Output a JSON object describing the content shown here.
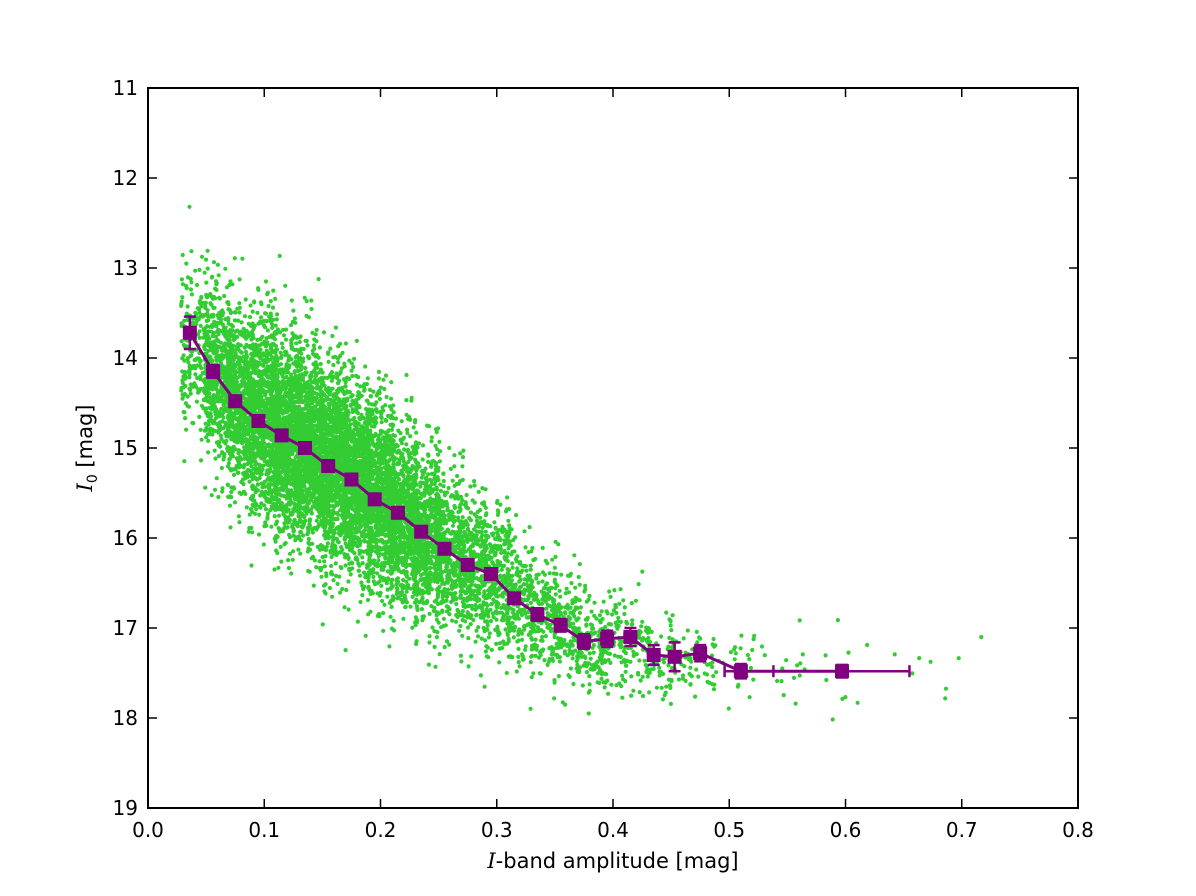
{
  "chart_data": {
    "type": "scatter",
    "title": "",
    "xlabel": {
      "italic": "I",
      "text": "-band amplitude [mag]"
    },
    "ylabel": {
      "italic": "I",
      "subscript": "0",
      "text": " [mag]"
    },
    "xlim": [
      0.0,
      0.8
    ],
    "ylim": [
      19,
      11
    ],
    "y_inverted": true,
    "grid": false,
    "legend": "none",
    "xticks": [
      "0.0",
      "0.1",
      "0.2",
      "0.3",
      "0.4",
      "0.5",
      "0.6",
      "0.7",
      "0.8"
    ],
    "yticks": [
      "11",
      "12",
      "13",
      "14",
      "15",
      "16",
      "17",
      "18",
      "19"
    ],
    "colors": {
      "scatter": "#33cc33",
      "binned": "#800080"
    },
    "scatter_series": {
      "description_points": "approx. 10000 individual stars, dense cloud",
      "distribution": {
        "center_x": [
          0.04,
          0.06,
          0.08,
          0.1,
          0.12,
          0.14,
          0.16,
          0.18,
          0.2,
          0.22,
          0.24,
          0.26,
          0.28,
          0.3,
          0.32,
          0.34,
          0.36,
          0.38,
          0.4,
          0.42,
          0.44,
          0.46,
          0.48,
          0.5,
          0.54,
          0.58,
          0.62,
          0.66,
          0.7,
          0.73
        ],
        "center_y": [
          13.9,
          14.2,
          14.5,
          14.7,
          14.9,
          15.0,
          15.2,
          15.35,
          15.55,
          15.75,
          15.95,
          16.15,
          16.3,
          16.45,
          16.7,
          16.85,
          17.0,
          17.15,
          17.15,
          17.2,
          17.3,
          17.35,
          17.35,
          17.45,
          17.5,
          17.5,
          17.5,
          17.5,
          17.5,
          17.5
        ],
        "spread_y": [
          0.7,
          0.7,
          0.7,
          0.75,
          0.75,
          0.75,
          0.75,
          0.75,
          0.75,
          0.7,
          0.65,
          0.6,
          0.55,
          0.55,
          0.5,
          0.45,
          0.45,
          0.4,
          0.4,
          0.4,
          0.4,
          0.35,
          0.35,
          0.35,
          0.35,
          0.35,
          0.35,
          0.35,
          0.35,
          0.35
        ],
        "weight": [
          200,
          500,
          700,
          900,
          1000,
          1000,
          1000,
          900,
          850,
          750,
          600,
          450,
          350,
          280,
          220,
          180,
          140,
          110,
          90,
          70,
          55,
          40,
          30,
          22,
          14,
          9,
          6,
          4,
          3,
          2
        ]
      }
    },
    "binned_series": {
      "x": [
        0.036,
        0.056,
        0.075,
        0.095,
        0.115,
        0.135,
        0.155,
        0.175,
        0.195,
        0.215,
        0.235,
        0.255,
        0.275,
        0.295,
        0.315,
        0.335,
        0.355,
        0.375,
        0.395,
        0.415,
        0.435,
        0.453,
        0.475,
        0.51,
        0.597
      ],
      "y": [
        13.72,
        14.15,
        14.48,
        14.7,
        14.86,
        15.0,
        15.2,
        15.35,
        15.57,
        15.72,
        15.93,
        16.12,
        16.3,
        16.4,
        16.67,
        16.85,
        16.97,
        17.15,
        17.12,
        17.1,
        17.3,
        17.32,
        17.28,
        17.48,
        17.48
      ],
      "yerr": [
        0.18,
        0.07,
        0.05,
        0.04,
        0.04,
        0.04,
        0.04,
        0.04,
        0.04,
        0.04,
        0.04,
        0.04,
        0.05,
        0.05,
        0.06,
        0.07,
        0.07,
        0.08,
        0.09,
        0.1,
        0.11,
        0.16,
        0.09,
        0.08,
        0.07
      ],
      "xerr_low": [
        0.004,
        0.004,
        0.004,
        0.004,
        0.004,
        0.004,
        0.004,
        0.004,
        0.004,
        0.004,
        0.004,
        0.004,
        0.004,
        0.004,
        0.004,
        0.004,
        0.004,
        0.004,
        0.004,
        0.004,
        0.004,
        0.004,
        0.004,
        0.014,
        0.0
      ],
      "xerr_high": [
        0.004,
        0.004,
        0.004,
        0.004,
        0.004,
        0.004,
        0.004,
        0.004,
        0.004,
        0.004,
        0.004,
        0.004,
        0.004,
        0.004,
        0.004,
        0.004,
        0.004,
        0.004,
        0.004,
        0.004,
        0.004,
        0.004,
        0.004,
        0.028,
        0.058
      ]
    }
  }
}
